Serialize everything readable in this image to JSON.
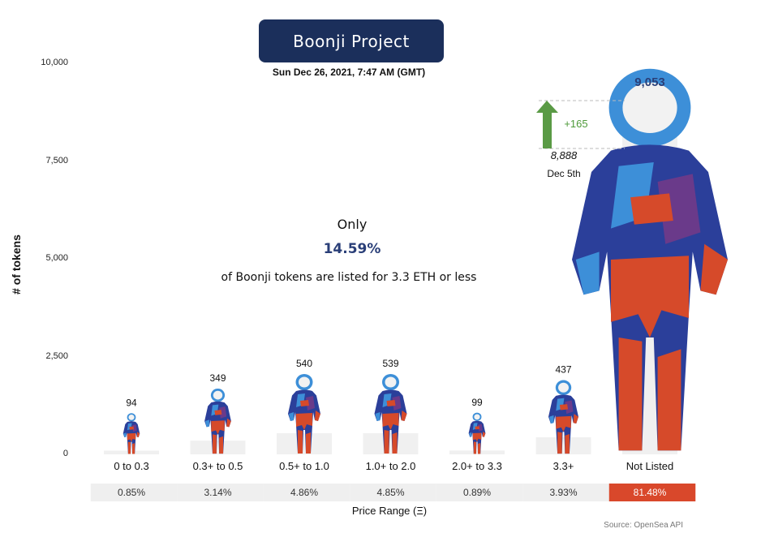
{
  "header": {
    "title": "Boonji Project",
    "subtitle": "Sun Dec 26, 2021, 7:47 AM (GMT)"
  },
  "callout": {
    "prefix": "Only",
    "percent": "14.59%",
    "text": "of Boonji tokens are listed for 3.3 ETH or less"
  },
  "source": "Source: OpenSea API",
  "colors": {
    "title_bg": "#1b2f5b",
    "bar_bg": "#f0f0f0",
    "highlight": "#d9482b",
    "arrow": "#5a9a45",
    "suit_blue": "#2b3f9a",
    "suit_light_blue": "#3d8fd8",
    "suit_red": "#d64a2a",
    "suit_purple": "#6a3a8a"
  },
  "annotation": {
    "baseline_value": "8,888",
    "baseline_date": "Dec 5th",
    "delta": "+165"
  },
  "chart_data": {
    "type": "bar",
    "ylabel": "# of tokens",
    "xlabel": "Price Range (Ξ)",
    "ylim": [
      0,
      10000
    ],
    "yticks": [
      0,
      2500,
      5000,
      7500,
      10000
    ],
    "ytick_labels": [
      "0",
      "2,500",
      "5,000",
      "7,500",
      "10,000"
    ],
    "categories": [
      "0 to 0.3",
      "0.3+ to 0.5",
      "0.5+ to 1.0",
      "1.0+ to 2.0",
      "2.0+ to 3.3",
      "3.3+",
      "Not Listed"
    ],
    "values": [
      94,
      349,
      540,
      539,
      99,
      437,
      9053
    ],
    "value_labels": [
      "94",
      "349",
      "540",
      "539",
      "99",
      "437",
      "9,053"
    ],
    "percentages": [
      "0.85%",
      "3.14%",
      "4.86%",
      "4.85%",
      "0.89%",
      "3.93%",
      "81.48%"
    ],
    "highlight_index": 6,
    "grid": false,
    "legend": "none"
  }
}
